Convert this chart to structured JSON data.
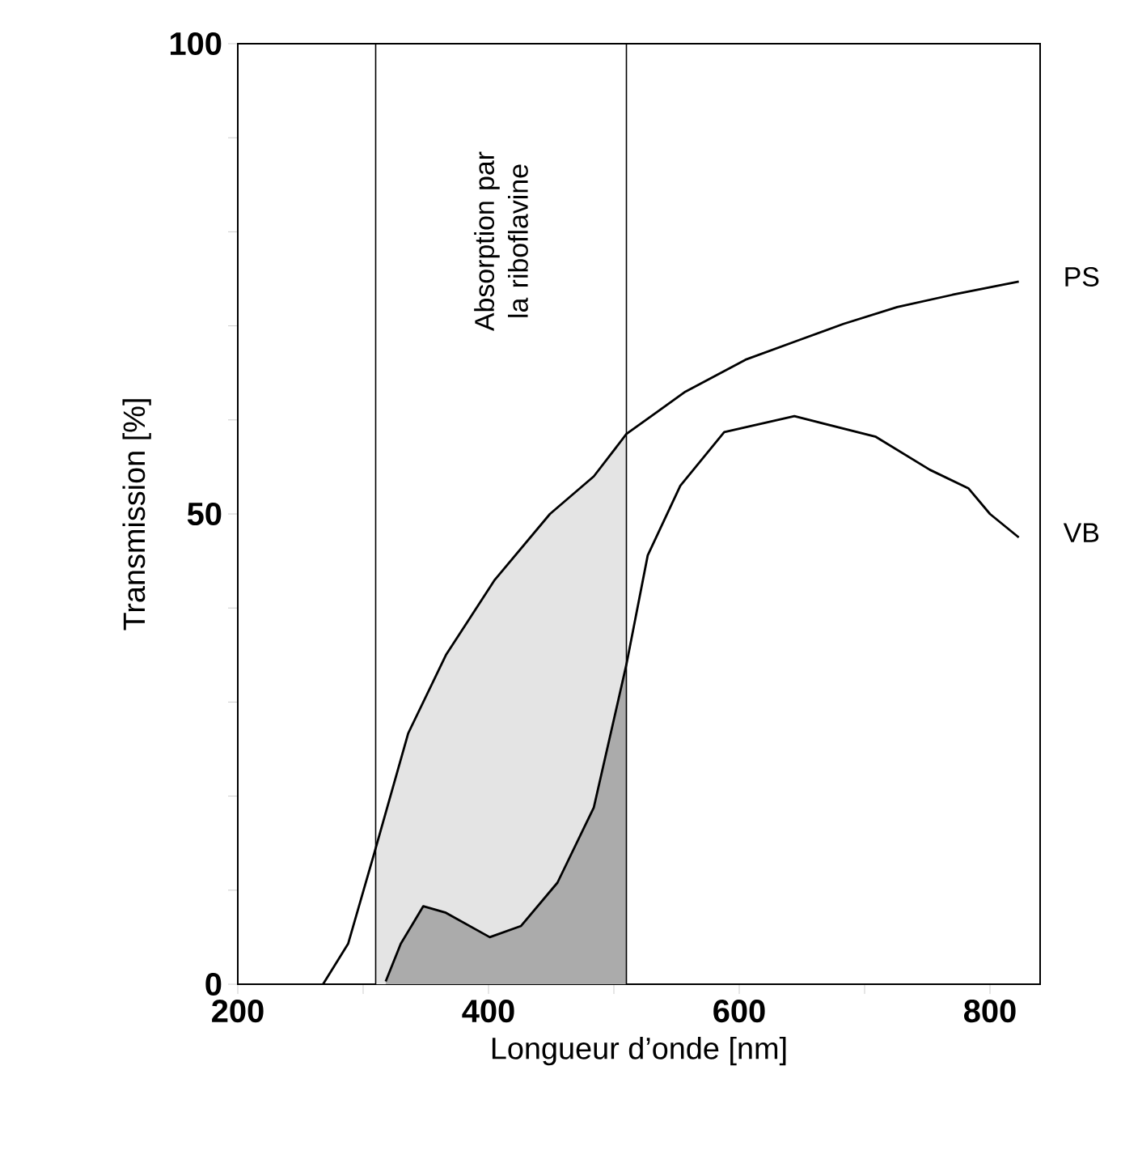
{
  "chart_data": {
    "type": "line",
    "xlabel": "Longueur d’onde [nm]",
    "ylabel": "Transmission [%]",
    "xlim": [
      200,
      840
    ],
    "ylim": [
      0,
      100
    ],
    "xticks": [
      200,
      {
        "value": 300,
        "label": null
      },
      400,
      {
        "value": 500,
        "label": null
      },
      600,
      {
        "value": 700,
        "label": null
      },
      800
    ],
    "yticks": [
      0,
      {
        "value": 10,
        "label": null
      },
      {
        "value": 20,
        "label": null
      },
      {
        "value": 30,
        "label": null
      },
      {
        "value": 40,
        "label": null
      },
      50,
      {
        "value": 60,
        "label": null
      },
      {
        "value": 70,
        "label": null
      },
      {
        "value": 80,
        "label": null
      },
      {
        "value": 90,
        "label": null
      },
      100
    ],
    "marker": "none",
    "line_style": "solid",
    "series": [
      {
        "type": "area",
        "color": "#e4e4e4",
        "x": [
          310,
          336,
          366,
          405,
          449,
          484,
          510
        ],
        "values": [
          14.3,
          26.7,
          35,
          43,
          50,
          54,
          58.5
        ]
      },
      {
        "type": "area",
        "color": "#ababab",
        "x": [
          318,
          330,
          348,
          366,
          401,
          426,
          455,
          484,
          510
        ],
        "values": [
          0.3,
          4.3,
          8.3,
          7.6,
          5,
          6.2,
          10.8,
          18.8,
          34
        ]
      },
      {
        "name": "PS",
        "color": "#000000",
        "x": [
          268,
          288,
          309,
          336,
          366,
          405,
          449,
          484,
          510,
          557,
          605,
          648,
          683,
          726,
          770,
          823
        ],
        "values": [
          0,
          4.3,
          14,
          26.7,
          35,
          43,
          50,
          54,
          58.5,
          63,
          66.4,
          68.5,
          70.2,
          72,
          73.3,
          74.7
        ]
      },
      {
        "name": "VB",
        "color": "#000000",
        "x": [
          318,
          330,
          348,
          366,
          401,
          426,
          455,
          484,
          510,
          527,
          553,
          588,
          644,
          709,
          752,
          783,
          800,
          823
        ],
        "values": [
          0.3,
          4.3,
          8.3,
          7.6,
          5,
          6.2,
          10.8,
          18.8,
          34,
          45.6,
          53,
          58.7,
          60.4,
          58.2,
          54.7,
          52.7,
          50,
          47.5
        ]
      }
    ],
    "ref_lines": [
      {
        "axis": "x",
        "value": 310,
        "color": "#000000"
      },
      {
        "axis": "x",
        "value": 510,
        "color": "#000000"
      }
    ],
    "annotations": [
      "Absorption par la riboflavine"
    ]
  }
}
